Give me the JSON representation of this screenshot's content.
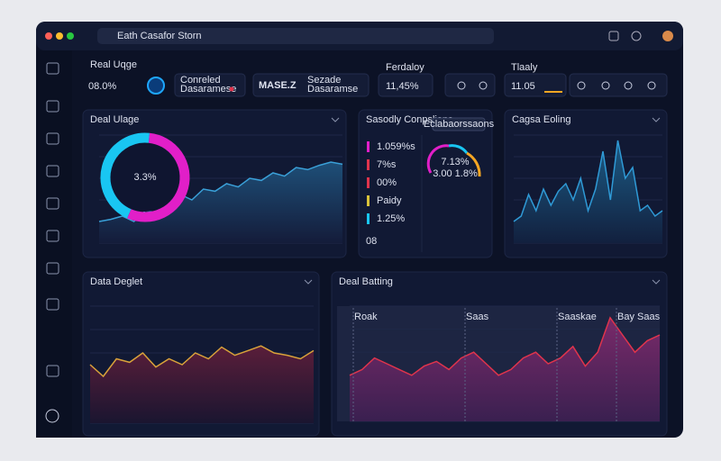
{
  "browser": {
    "address": "Eath Casafor Storn"
  },
  "header": {
    "title": "Real Uqge",
    "value": "08.0%"
  },
  "cards": [
    {
      "lines": [
        "Conreled",
        "Dasaramese"
      ]
    },
    {
      "title": "MASE.Z",
      "lines": [
        "Sezade",
        "Dasaramse"
      ]
    },
    {
      "label": "Ferdaloy",
      "value": "11,45%"
    },
    {
      "label": "Tlaaly",
      "value": "11.05"
    }
  ],
  "panels": [
    {
      "title": "Deal Ulage",
      "center_label": "3.3%",
      "ring": [
        55,
        45
      ],
      "values": [
        20,
        22,
        25,
        20,
        30,
        28,
        35,
        45,
        40,
        50,
        48,
        55,
        52,
        60,
        58,
        65,
        62,
        70,
        68,
        72,
        75,
        73
      ],
      "ylim": [
        0,
        100
      ]
    },
    {
      "title": "Sasodly Conpslians",
      "button": "Eclabaorssaons",
      "items": [
        "1.059%s",
        "7%s",
        "00%",
        "Paidy",
        "1.25%"
      ],
      "footer": "08",
      "gauge_label": "7.13%",
      "gauge_sub": "3.00 1.8%"
    },
    {
      "title": "Cagsa Eoling",
      "values": [
        20,
        25,
        45,
        30,
        50,
        35,
        48,
        55,
        40,
        60,
        30,
        50,
        85,
        40,
        95,
        60,
        70,
        30,
        35,
        25,
        30
      ],
      "ylim": [
        0,
        100
      ]
    },
    {
      "title": "Data Deglet",
      "values": [
        50,
        40,
        55,
        52,
        60,
        48,
        55,
        50,
        60,
        55,
        65,
        58,
        62,
        66,
        60,
        58,
        55,
        62
      ],
      "ylim": [
        0,
        100
      ]
    },
    {
      "title": "Deal Batting",
      "markers": [
        "Roak",
        "Saas",
        "Saaskae",
        "Bay Saas"
      ],
      "values": [
        40,
        45,
        55,
        50,
        45,
        40,
        48,
        52,
        45,
        55,
        60,
        50,
        40,
        45,
        55,
        60,
        50,
        55,
        65,
        48,
        60,
        90,
        75,
        60,
        70,
        75
      ],
      "ylim": [
        0,
        100
      ]
    }
  ]
}
